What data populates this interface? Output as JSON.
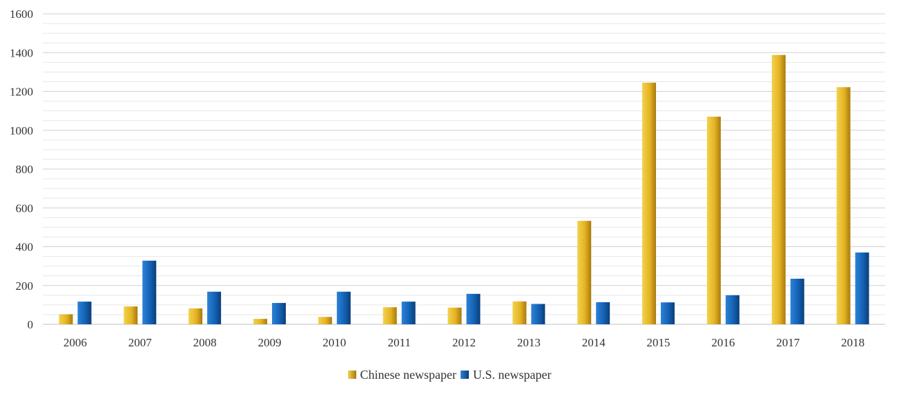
{
  "chart_data": {
    "type": "bar",
    "categories": [
      "2006",
      "2007",
      "2008",
      "2009",
      "2010",
      "2011",
      "2012",
      "2013",
      "2014",
      "2015",
      "2016",
      "2017",
      "2018"
    ],
    "series": [
      {
        "name": "Chinese newspaper",
        "color": "#E8B828",
        "values": [
          52,
          92,
          82,
          28,
          38,
          88,
          86,
          118,
          533,
          1245,
          1070,
          1388,
          1222
        ]
      },
      {
        "name": "U.S. newspaper",
        "color": "#1462B4",
        "values": [
          117,
          328,
          168,
          110,
          168,
          117,
          157,
          105,
          114,
          113,
          150,
          235,
          370
        ]
      }
    ],
    "ylim": [
      0,
      1600
    ],
    "yticks": [
      0,
      200,
      400,
      600,
      800,
      1000,
      1200,
      1400,
      1600
    ],
    "grid": true,
    "legend_position": "bottom"
  }
}
